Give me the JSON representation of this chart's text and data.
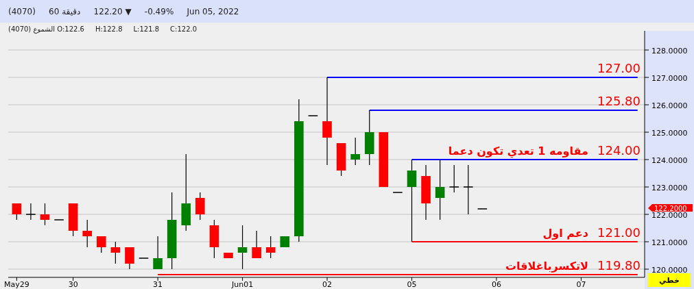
{
  "chart_data": {
    "type": "candlestick",
    "title": "(4070)   60 دقيقة   122.20 ▼   -0.49%   Jun 05, 2022",
    "subtitle": "الشموع (4070) O:122.6  H:122.8  L:121.8  C:122.0",
    "categories": [
      "May29",
      null,
      null,
      null,
      "30",
      null,
      null,
      null,
      null,
      null,
      "31",
      null,
      null,
      null,
      null,
      null,
      "Jun01",
      null,
      null,
      null,
      null,
      null,
      "02",
      null,
      null,
      null,
      null,
      null,
      "05",
      null,
      null,
      null,
      null,
      null,
      "06",
      null,
      null,
      null,
      null,
      null,
      "07",
      null,
      null,
      null,
      null
    ],
    "ohlc": [
      [
        122.4,
        122.4,
        121.8,
        122.0
      ],
      [
        122.0,
        122.4,
        121.8,
        122.0
      ],
      [
        122.0,
        122.4,
        121.6,
        121.8
      ],
      [
        121.8,
        121.8,
        121.8,
        121.8
      ],
      [
        122.4,
        122.4,
        121.2,
        121.4
      ],
      [
        121.4,
        121.8,
        120.8,
        121.2
      ],
      [
        121.2,
        121.2,
        120.6,
        120.8
      ],
      [
        120.8,
        121.0,
        120.2,
        120.6
      ],
      [
        120.8,
        120.8,
        120.0,
        120.2
      ],
      [
        120.4,
        120.4,
        120.4,
        120.4
      ],
      [
        120.0,
        121.2,
        120.0,
        120.4
      ],
      [
        120.4,
        122.8,
        120.0,
        121.8
      ],
      [
        121.6,
        124.2,
        121.4,
        122.4
      ],
      [
        122.6,
        122.8,
        121.8,
        122.0
      ],
      [
        121.6,
        121.8,
        120.4,
        120.8
      ],
      [
        120.6,
        120.6,
        120.4,
        120.4
      ],
      [
        120.6,
        121.6,
        120.0,
        120.8
      ],
      [
        120.8,
        121.4,
        120.4,
        120.4
      ],
      [
        120.8,
        121.2,
        120.4,
        120.6
      ],
      [
        120.8,
        121.2,
        120.8,
        121.2
      ],
      [
        121.2,
        126.2,
        121.0,
        125.4
      ],
      [
        125.6,
        125.6,
        125.6,
        125.6
      ],
      [
        125.4,
        127.0,
        123.8,
        124.8
      ],
      [
        124.6,
        124.6,
        123.4,
        123.6
      ],
      [
        124.0,
        124.8,
        123.8,
        124.2
      ],
      [
        124.2,
        125.8,
        123.8,
        125.0
      ],
      [
        125.0,
        125.0,
        123.0,
        123.0
      ],
      [
        122.8,
        122.8,
        122.8,
        122.8
      ],
      [
        123.0,
        124.0,
        121.0,
        123.6
      ],
      [
        123.4,
        123.8,
        121.8,
        122.4
      ],
      [
        122.6,
        124.0,
        121.8,
        123.0
      ],
      [
        123.0,
        123.8,
        122.8,
        123.0
      ],
      [
        123.0,
        123.8,
        122.0,
        123.0
      ],
      [
        122.2,
        122.2,
        122.2,
        122.2
      ],
      null,
      null,
      null,
      null,
      null,
      null,
      null,
      null,
      null,
      null,
      null
    ],
    "colors": [
      "#ff0000",
      "#000000",
      "#ff0000",
      "#000000",
      "#ff0000",
      "#ff0000",
      "#ff0000",
      "#ff0000",
      "#ff0000",
      "#000000",
      "#008000",
      "#008000",
      "#008000",
      "#ff0000",
      "#ff0000",
      "#ff0000",
      "#008000",
      "#ff0000",
      "#ff0000",
      "#008000",
      "#008000",
      "#000000",
      "#ff0000",
      "#ff0000",
      "#008000",
      "#008000",
      "#ff0000",
      "#000000",
      "#008000",
      "#ff0000",
      "#008000",
      "#000000",
      "#000000",
      "#000000",
      null,
      null,
      null,
      null,
      null,
      null,
      null,
      null,
      null,
      null,
      null
    ],
    "series": [
      {
        "name": "127.00",
        "type": "line",
        "color": "#0000ff",
        "values": [
          null,
          null,
          null,
          null,
          null,
          null,
          null,
          null,
          null,
          null,
          null,
          null,
          null,
          null,
          null,
          null,
          null,
          null,
          null,
          null,
          null,
          null,
          127.0,
          127.0,
          127.0,
          127.0,
          127.0,
          127.0,
          127.0,
          127.0,
          127.0,
          127.0,
          127.0,
          127.0,
          127.0,
          127.0,
          127.0,
          127.0,
          127.0,
          127.0,
          127.0,
          127.0,
          127.0,
          127.0,
          127.0
        ]
      },
      {
        "name": "125.80",
        "type": "line",
        "color": "#0000ff",
        "values": [
          null,
          null,
          null,
          null,
          null,
          null,
          null,
          null,
          null,
          null,
          null,
          null,
          null,
          null,
          null,
          null,
          null,
          null,
          null,
          null,
          null,
          null,
          null,
          null,
          null,
          125.8,
          125.8,
          125.8,
          125.8,
          125.8,
          125.8,
          125.8,
          125.8,
          125.8,
          125.8,
          125.8,
          125.8,
          125.8,
          125.8,
          125.8,
          125.8,
          125.8,
          125.8,
          125.8,
          125.8
        ]
      },
      {
        "name": "124.00",
        "type": "line",
        "color": "#0000ff",
        "values": [
          null,
          null,
          null,
          null,
          null,
          null,
          null,
          null,
          null,
          null,
          null,
          null,
          null,
          null,
          null,
          null,
          null,
          null,
          null,
          null,
          null,
          null,
          null,
          null,
          null,
          null,
          null,
          null,
          124.0,
          124.0,
          124.0,
          124.0,
          124.0,
          124.0,
          124.0,
          124.0,
          124.0,
          124.0,
          124.0,
          124.0,
          124.0,
          124.0,
          124.0,
          124.0,
          124.0
        ]
      },
      {
        "name": "121.00",
        "type": "line",
        "color": "#ff0000",
        "values": [
          null,
          null,
          null,
          null,
          null,
          null,
          null,
          null,
          null,
          null,
          null,
          null,
          null,
          null,
          null,
          null,
          null,
          null,
          null,
          null,
          null,
          null,
          null,
          null,
          null,
          null,
          null,
          null,
          121.0,
          121.0,
          121.0,
          121.0,
          121.0,
          121.0,
          121.0,
          121.0,
          121.0,
          121.0,
          121.0,
          121.0,
          121.0,
          121.0,
          121.0,
          121.0,
          121.0
        ]
      },
      {
        "name": "119.80",
        "type": "line",
        "color": "#ff0000",
        "values": [
          null,
          null,
          null,
          null,
          null,
          null,
          null,
          null,
          null,
          null,
          119.8,
          119.8,
          119.8,
          119.8,
          119.8,
          119.8,
          119.8,
          119.8,
          119.8,
          119.8,
          119.8,
          119.8,
          119.8,
          119.8,
          119.8,
          119.8,
          119.8,
          119.8,
          119.8,
          119.8,
          119.8,
          119.8,
          119.8,
          119.8,
          119.8,
          119.8,
          119.8,
          119.8,
          119.8,
          119.8,
          119.8,
          119.8,
          119.8,
          119.8,
          119.8
        ]
      }
    ],
    "ylim": [
      119.7,
      128.7
    ],
    "yticks": [
      {
        "value": 120,
        "label": "120.0000"
      },
      {
        "value": 121,
        "label": "121.0000"
      },
      {
        "value": 122,
        "label": "122.0000"
      },
      {
        "value": 123,
        "label": "123.0000"
      },
      {
        "value": 124,
        "label": "124.0000"
      },
      {
        "value": 125,
        "label": "125.0000"
      },
      {
        "value": 126,
        "label": "126.0000"
      },
      {
        "value": 127,
        "label": "127.0000"
      },
      {
        "value": 128,
        "label": "128.0000"
      }
    ],
    "grid": "y",
    "annotations": [
      {
        "text": "مقاومه 1 تعدي تكون دعما",
        "y": 124.0
      },
      {
        "text": "دعم اول",
        "y": 121.0
      },
      {
        "text": "لاتكسرباغلاقات",
        "y": 119.8
      },
      "122.2000",
      "خطي"
    ]
  }
}
